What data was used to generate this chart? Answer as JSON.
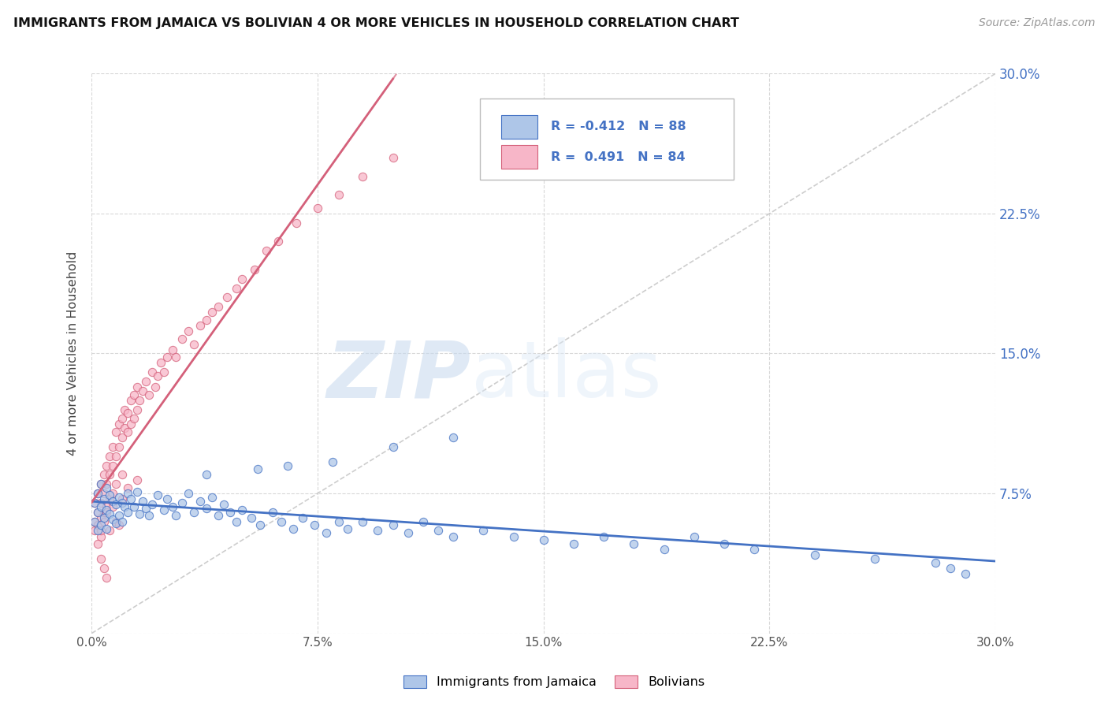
{
  "title": "IMMIGRANTS FROM JAMAICA VS BOLIVIAN 4 OR MORE VEHICLES IN HOUSEHOLD CORRELATION CHART",
  "source": "Source: ZipAtlas.com",
  "ylabel": "4 or more Vehicles in Household",
  "legend_label1": "Immigrants from Jamaica",
  "legend_label2": "Bolivians",
  "R1": -0.412,
  "N1": 88,
  "R2": 0.491,
  "N2": 84,
  "color_blue": "#aec6e8",
  "color_pink": "#f7b6c8",
  "color_blue_line": "#4472c4",
  "color_pink_line": "#d4607a",
  "color_blue_text": "#4472c4",
  "background": "#ffffff",
  "grid_color": "#d8d8d8",
  "watermark_zip": "ZIP",
  "watermark_atlas": "atlas",
  "xlim": [
    0.0,
    0.3
  ],
  "ylim": [
    0.0,
    0.3
  ],
  "x_ticks": [
    0.0,
    0.075,
    0.15,
    0.225,
    0.3
  ],
  "x_tick_labels": [
    "0.0%",
    "7.5%",
    "15.0%",
    "22.5%",
    "30.0%"
  ],
  "y_ticks": [
    0.0,
    0.075,
    0.15,
    0.225,
    0.3
  ],
  "y_ticks_right": [
    0.075,
    0.15,
    0.225,
    0.3
  ],
  "y_tick_labels_right": [
    "7.5%",
    "15.0%",
    "22.5%",
    "30.0%"
  ],
  "jamaica_x": [
    0.001,
    0.001,
    0.002,
    0.002,
    0.002,
    0.003,
    0.003,
    0.003,
    0.004,
    0.004,
    0.005,
    0.005,
    0.005,
    0.006,
    0.006,
    0.007,
    0.007,
    0.008,
    0.008,
    0.009,
    0.009,
    0.01,
    0.01,
    0.011,
    0.012,
    0.012,
    0.013,
    0.014,
    0.015,
    0.016,
    0.017,
    0.018,
    0.019,
    0.02,
    0.022,
    0.024,
    0.025,
    0.027,
    0.028,
    0.03,
    0.032,
    0.034,
    0.036,
    0.038,
    0.04,
    0.042,
    0.044,
    0.046,
    0.048,
    0.05,
    0.053,
    0.056,
    0.06,
    0.063,
    0.067,
    0.07,
    0.074,
    0.078,
    0.082,
    0.085,
    0.09,
    0.095,
    0.1,
    0.105,
    0.11,
    0.115,
    0.12,
    0.13,
    0.14,
    0.15,
    0.16,
    0.17,
    0.18,
    0.19,
    0.2,
    0.21,
    0.22,
    0.24,
    0.26,
    0.28,
    0.285,
    0.29,
    0.038,
    0.055,
    0.065,
    0.08,
    0.1,
    0.12
  ],
  "jamaica_y": [
    0.07,
    0.06,
    0.075,
    0.065,
    0.055,
    0.08,
    0.068,
    0.058,
    0.072,
    0.062,
    0.078,
    0.066,
    0.056,
    0.074,
    0.064,
    0.071,
    0.061,
    0.069,
    0.059,
    0.073,
    0.063,
    0.07,
    0.06,
    0.068,
    0.075,
    0.065,
    0.072,
    0.068,
    0.076,
    0.064,
    0.071,
    0.067,
    0.063,
    0.069,
    0.074,
    0.066,
    0.072,
    0.068,
    0.063,
    0.07,
    0.075,
    0.065,
    0.071,
    0.067,
    0.073,
    0.063,
    0.069,
    0.065,
    0.06,
    0.066,
    0.062,
    0.058,
    0.065,
    0.06,
    0.056,
    0.062,
    0.058,
    0.054,
    0.06,
    0.056,
    0.06,
    0.055,
    0.058,
    0.054,
    0.06,
    0.055,
    0.052,
    0.055,
    0.052,
    0.05,
    0.048,
    0.052,
    0.048,
    0.045,
    0.052,
    0.048,
    0.045,
    0.042,
    0.04,
    0.038,
    0.035,
    0.032,
    0.085,
    0.088,
    0.09,
    0.092,
    0.1,
    0.105
  ],
  "bolivia_x": [
    0.001,
    0.001,
    0.001,
    0.002,
    0.002,
    0.002,
    0.003,
    0.003,
    0.003,
    0.003,
    0.004,
    0.004,
    0.004,
    0.005,
    0.005,
    0.005,
    0.006,
    0.006,
    0.006,
    0.007,
    0.007,
    0.007,
    0.008,
    0.008,
    0.008,
    0.009,
    0.009,
    0.01,
    0.01,
    0.01,
    0.011,
    0.011,
    0.012,
    0.012,
    0.013,
    0.013,
    0.014,
    0.014,
    0.015,
    0.015,
    0.016,
    0.017,
    0.018,
    0.019,
    0.02,
    0.021,
    0.022,
    0.023,
    0.024,
    0.025,
    0.027,
    0.028,
    0.03,
    0.032,
    0.034,
    0.036,
    0.038,
    0.04,
    0.042,
    0.045,
    0.048,
    0.05,
    0.054,
    0.058,
    0.062,
    0.068,
    0.075,
    0.082,
    0.09,
    0.1,
    0.003,
    0.004,
    0.005,
    0.006,
    0.007,
    0.008,
    0.009,
    0.01,
    0.012,
    0.015,
    0.002,
    0.003,
    0.004,
    0.005
  ],
  "bolivia_y": [
    0.06,
    0.07,
    0.055,
    0.065,
    0.075,
    0.058,
    0.07,
    0.08,
    0.062,
    0.052,
    0.075,
    0.085,
    0.065,
    0.08,
    0.09,
    0.068,
    0.085,
    0.095,
    0.072,
    0.09,
    0.1,
    0.075,
    0.095,
    0.108,
    0.08,
    0.1,
    0.112,
    0.105,
    0.115,
    0.085,
    0.11,
    0.12,
    0.108,
    0.118,
    0.112,
    0.125,
    0.115,
    0.128,
    0.12,
    0.132,
    0.125,
    0.13,
    0.135,
    0.128,
    0.14,
    0.132,
    0.138,
    0.145,
    0.14,
    0.148,
    0.152,
    0.148,
    0.158,
    0.162,
    0.155,
    0.165,
    0.168,
    0.172,
    0.175,
    0.18,
    0.185,
    0.19,
    0.195,
    0.205,
    0.21,
    0.22,
    0.228,
    0.235,
    0.245,
    0.255,
    0.055,
    0.06,
    0.065,
    0.055,
    0.068,
    0.06,
    0.058,
    0.072,
    0.078,
    0.082,
    0.048,
    0.04,
    0.035,
    0.03
  ]
}
